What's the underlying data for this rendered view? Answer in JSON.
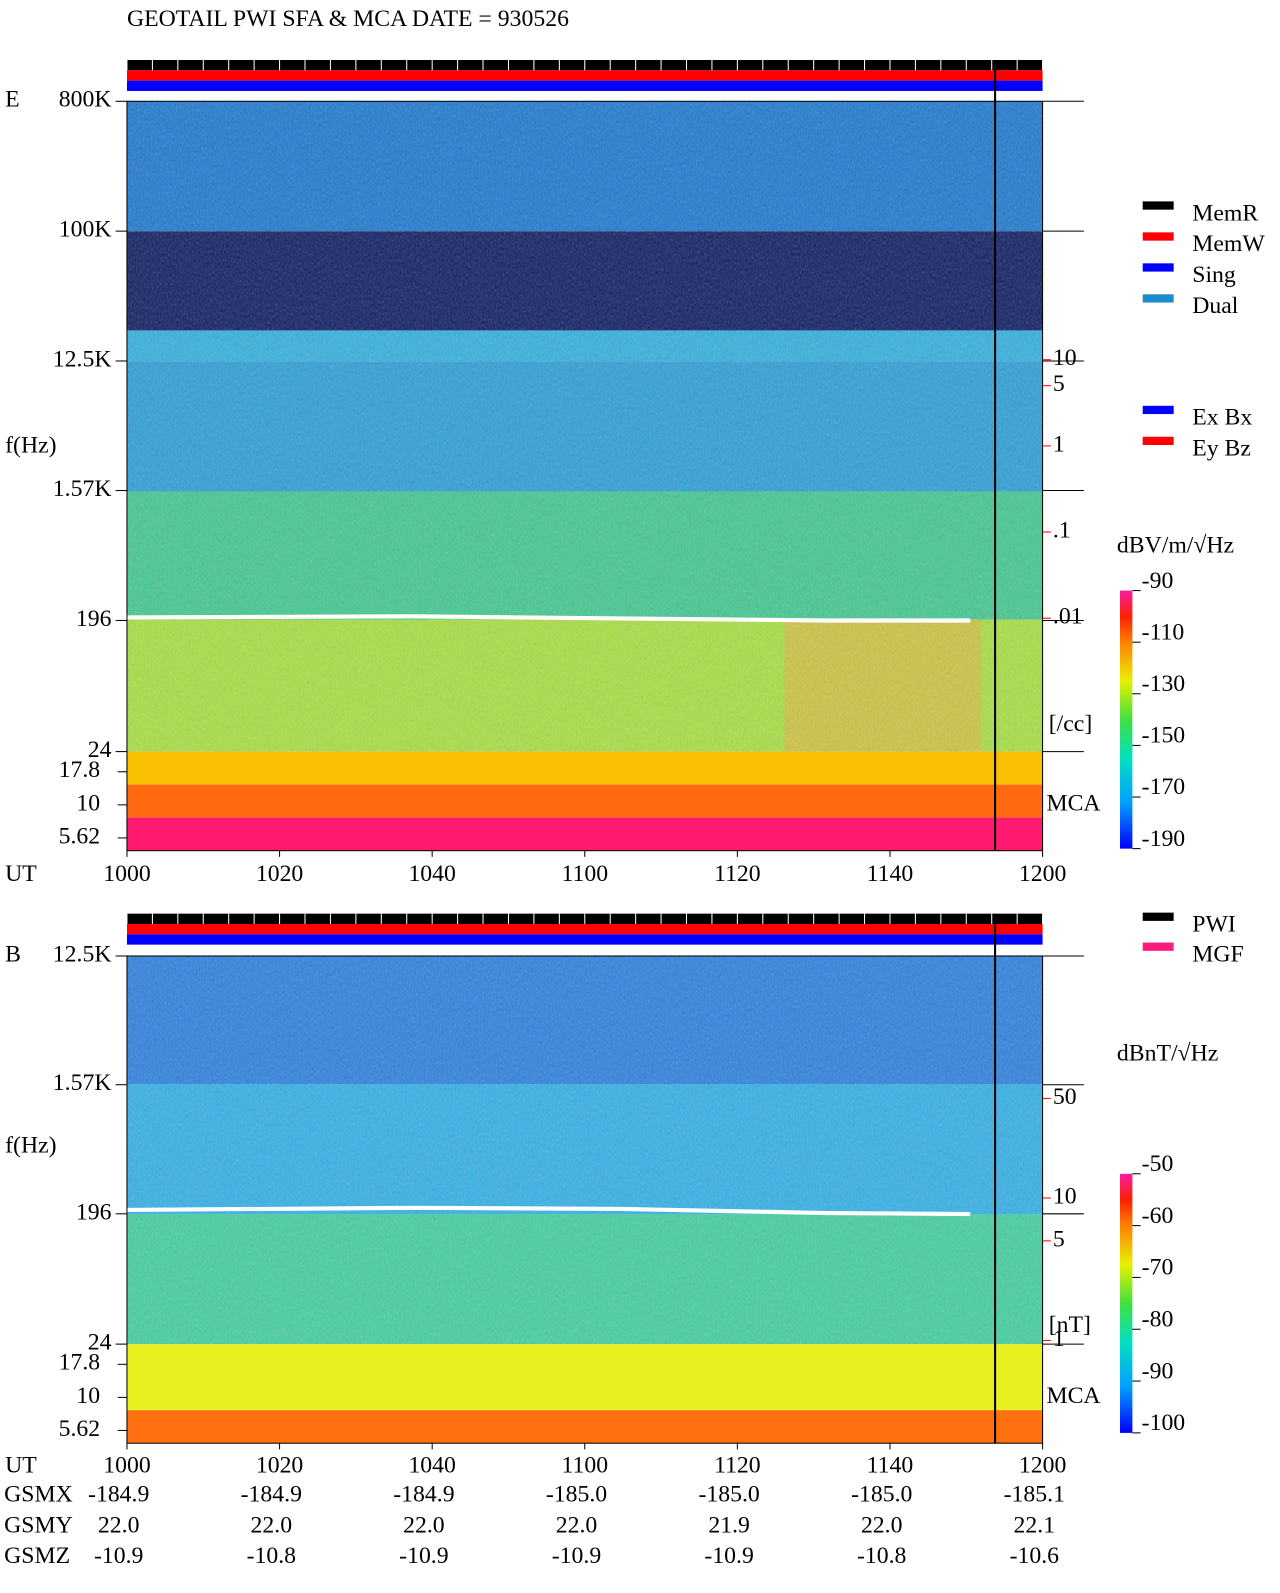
{
  "title": "GEOTAIL  PWI SFA & MCA   DATE = 930526",
  "legend_status": [
    {
      "name": "MemR",
      "color": "#000000"
    },
    {
      "name": "MemW",
      "color": "#ff0000"
    },
    {
      "name": "Sing",
      "color": "#0000ff"
    },
    {
      "name": "Dual",
      "color": "#1e8ccc"
    }
  ],
  "legend_component": [
    {
      "name": "Ex Bx",
      "color": "#0000ff"
    },
    {
      "name": "Ey Bz",
      "color": "#ff0000"
    }
  ],
  "legend_source": [
    {
      "name": "PWI",
      "color": "#000000"
    },
    {
      "name": "MGF",
      "color": "#ff1a80"
    }
  ],
  "chart_data": [
    {
      "type": "spectrogram",
      "panel_label": "E",
      "y_label": "f(Hz)",
      "x_label": "UT",
      "log_y": true,
      "ylim": [
        24,
        800000
      ],
      "yticks": [
        {
          "value": 800000,
          "label": "800K"
        },
        {
          "value": 100000,
          "label": "100K"
        },
        {
          "value": 12500,
          "label": "12.5K"
        },
        {
          "value": 1570,
          "label": "1.57K"
        },
        196,
        24
      ],
      "mca_label": "MCA",
      "mca_ylim": [
        4.5,
        25.3
      ],
      "mca_ticks": [
        17.8,
        10,
        5.62
      ],
      "xlim": [
        600,
        720
      ],
      "xticks": [
        {
          "value": 600,
          "label": "1000"
        },
        {
          "value": 620,
          "label": "1020"
        },
        {
          "value": 640,
          "label": "1040"
        },
        {
          "value": 660,
          "label": "1100"
        },
        {
          "value": 680,
          "label": "1120"
        },
        {
          "value": 700,
          "label": "1140"
        },
        {
          "value": 720,
          "label": "1200"
        }
      ],
      "y2lim": [
        2e-05,
        10000
      ],
      "y2_log": true,
      "y2ticks": [
        10,
        5,
        1,
        {
          "value": 0.1,
          "label": ".1"
        },
        {
          "value": 0.01,
          "label": ".01"
        }
      ],
      "y2_unit": "[/cc]",
      "y2_color": "#ff0000",
      "colorbar_label": "dBV/m/√Hz",
      "clim": [
        -190,
        -90
      ],
      "cticks": [
        -90,
        -110,
        -130,
        -150,
        -170,
        -190
      ]
    },
    {
      "type": "spectrogram",
      "panel_label": "B",
      "y_label": "f(Hz)",
      "x_label": "UT",
      "log_y": true,
      "ylim": [
        24,
        12500
      ],
      "yticks": [
        {
          "value": 12500,
          "label": "12.5K"
        },
        {
          "value": 1570,
          "label": "1.57K"
        },
        196,
        24
      ],
      "mca_label": "MCA",
      "mca_ylim": [
        4.5,
        25.3
      ],
      "mca_ticks": [
        17.8,
        10,
        5.62
      ],
      "xlim": [
        600,
        720
      ],
      "xticks": [
        {
          "value": 600,
          "label": "1000"
        },
        {
          "value": 620,
          "label": "1020"
        },
        {
          "value": 640,
          "label": "1040"
        },
        {
          "value": 660,
          "label": "1100"
        },
        {
          "value": 680,
          "label": "1120"
        },
        {
          "value": 700,
          "label": "1140"
        },
        {
          "value": 720,
          "label": "1200"
        }
      ],
      "y2lim": [
        0.19,
        500
      ],
      "y2_log": true,
      "y2ticks": [
        50,
        10,
        5,
        1
      ],
      "y2_unit": "[nT]",
      "y2_color": "#ff0000",
      "colorbar_label": "dBnT/√Hz",
      "clim": [
        -100,
        -50
      ],
      "cticks": [
        -50,
        -60,
        -70,
        -80,
        -90,
        -100
      ]
    }
  ],
  "orbit": {
    "rows": [
      {
        "name": "GSMX",
        "values": [
          "-184.9",
          "-184.9",
          "-184.9",
          "-185.0",
          "-185.0",
          "-185.0",
          "-185.1"
        ]
      },
      {
        "name": "GSMY",
        "values": [
          "22.0",
          "22.0",
          "22.0",
          "22.0",
          "21.9",
          "22.0",
          "22.1"
        ]
      },
      {
        "name": "GSMZ",
        "values": [
          "-10.9",
          "-10.8",
          "-10.9",
          "-10.9",
          "-10.9",
          "-10.8",
          "-10.6"
        ]
      }
    ]
  }
}
